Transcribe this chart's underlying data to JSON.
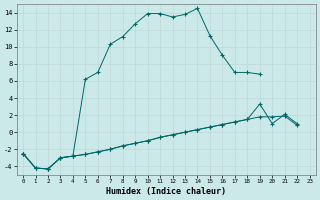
{
  "xlabel": "Humidex (Indice chaleur)",
  "bg_color": "#cce9e9",
  "grid_color": "#c0d8d8",
  "line_color": "#006666",
  "xlim": [
    -0.5,
    23.5
  ],
  "ylim": [
    -5,
    15
  ],
  "xticks": [
    0,
    1,
    2,
    3,
    4,
    5,
    6,
    7,
    8,
    9,
    10,
    11,
    12,
    13,
    14,
    15,
    16,
    17,
    18,
    19,
    20,
    21,
    22,
    23
  ],
  "yticks": [
    -4,
    -2,
    0,
    2,
    4,
    6,
    8,
    10,
    12,
    14
  ],
  "line1_x": [
    0,
    1,
    2,
    3,
    4,
    5,
    6,
    7,
    8,
    9,
    10,
    11,
    12,
    13,
    14,
    15,
    16,
    17,
    18,
    19,
    20,
    21,
    22
  ],
  "line1_y": [
    -2.5,
    -4.2,
    -4.3,
    -3.0,
    -2.8,
    6.2,
    7.0,
    10.3,
    11.2,
    12.7,
    13.9,
    13.9,
    13.5,
    13.8,
    14.5,
    11.3,
    9.0,
    7.0,
    7.0,
    6.8,
    null,
    null,
    null
  ],
  "line2_x": [
    0,
    1,
    2,
    3,
    4,
    5,
    6,
    7,
    8,
    9,
    10,
    11,
    12,
    13,
    14,
    15,
    16,
    17,
    18,
    19,
    20,
    21,
    22,
    23
  ],
  "line2_y": [
    -2.5,
    -4.2,
    -4.3,
    -3.0,
    -2.8,
    -2.6,
    -2.3,
    -2.0,
    -1.6,
    -1.3,
    -1.0,
    -0.6,
    -0.3,
    0.0,
    0.3,
    0.6,
    0.9,
    1.2,
    1.5,
    3.3,
    1.0,
    2.1,
    1.0,
    null
  ],
  "line3_x": [
    0,
    1,
    2,
    3,
    4,
    5,
    6,
    7,
    8,
    9,
    10,
    11,
    12,
    13,
    14,
    15,
    16,
    17,
    18,
    19,
    20,
    21,
    22,
    23
  ],
  "line3_y": [
    -2.5,
    -4.2,
    -4.3,
    -3.0,
    -2.8,
    -2.6,
    -2.3,
    -2.0,
    -1.6,
    -1.3,
    -1.0,
    -0.6,
    -0.3,
    0.0,
    0.3,
    0.6,
    0.9,
    1.2,
    1.5,
    1.8,
    1.8,
    1.9,
    0.8,
    null
  ]
}
